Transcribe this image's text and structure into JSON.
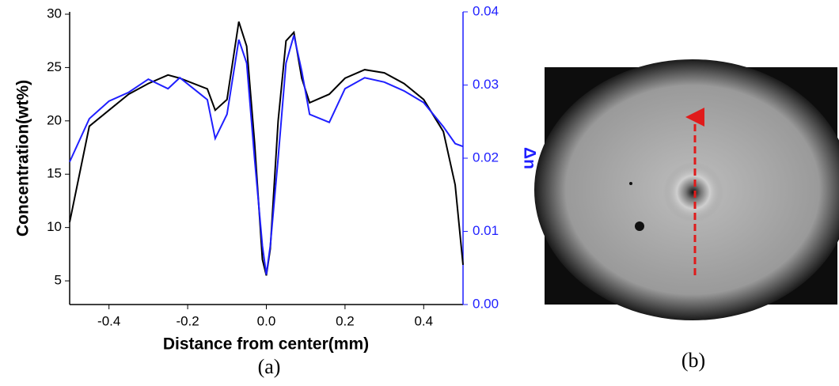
{
  "chart_data": {
    "type": "line",
    "x_label": "Distance from center(mm)",
    "y_label": "Concentration(wt%)",
    "y2_label": "Δn",
    "x": [
      -0.5,
      -0.45,
      -0.4,
      -0.35,
      -0.3,
      -0.25,
      -0.22,
      -0.15,
      -0.13,
      -0.1,
      -0.07,
      -0.05,
      -0.03,
      -0.01,
      0,
      0.01,
      0.03,
      0.05,
      0.07,
      0.09,
      0.11,
      0.16,
      0.2,
      0.25,
      0.3,
      0.35,
      0.4,
      0.45,
      0.48,
      0.5
    ],
    "series": [
      {
        "name": "Concentration",
        "color": "#000000",
        "values": [
          10.5,
          19.5,
          21,
          22.5,
          23.5,
          24.3,
          24,
          23,
          21,
          22,
          29.3,
          27,
          18,
          7,
          5.5,
          8,
          20,
          27.5,
          28.3,
          24,
          21.7,
          22.5,
          24,
          24.8,
          24.5,
          23.5,
          22,
          19,
          14,
          6.5
        ]
      },
      {
        "name": "Δn",
        "color": "#1f1fff",
        "axis": "y2",
        "values": [
          0.0195,
          0.0254,
          0.0278,
          0.029,
          0.0308,
          0.0295,
          0.031,
          0.028,
          0.0227,
          0.026,
          0.0362,
          0.033,
          0.02,
          0.008,
          0.0041,
          0.008,
          0.02,
          0.033,
          0.0368,
          0.0319,
          0.026,
          0.0249,
          0.0295,
          0.031,
          0.0304,
          0.0292,
          0.0276,
          0.0243,
          0.022,
          0.0216
        ]
      }
    ],
    "xlim": [
      -0.5,
      0.5
    ],
    "xticks": [
      -0.4,
      -0.2,
      {
        "value": 0,
        "label": "0.0"
      },
      0.2,
      0.4
    ],
    "ylim": [
      2.78,
      30.22
    ],
    "yticks": [
      5,
      10,
      15,
      20,
      25,
      30
    ],
    "y2lim": [
      0,
      0.04
    ],
    "y2ticks": [
      {
        "value": 0,
        "label": "0.00"
      },
      0.01,
      0.02,
      0.03,
      0.04
    ],
    "y2_color": "#1f1fff",
    "captions": [
      "(a)",
      "(b)"
    ]
  }
}
